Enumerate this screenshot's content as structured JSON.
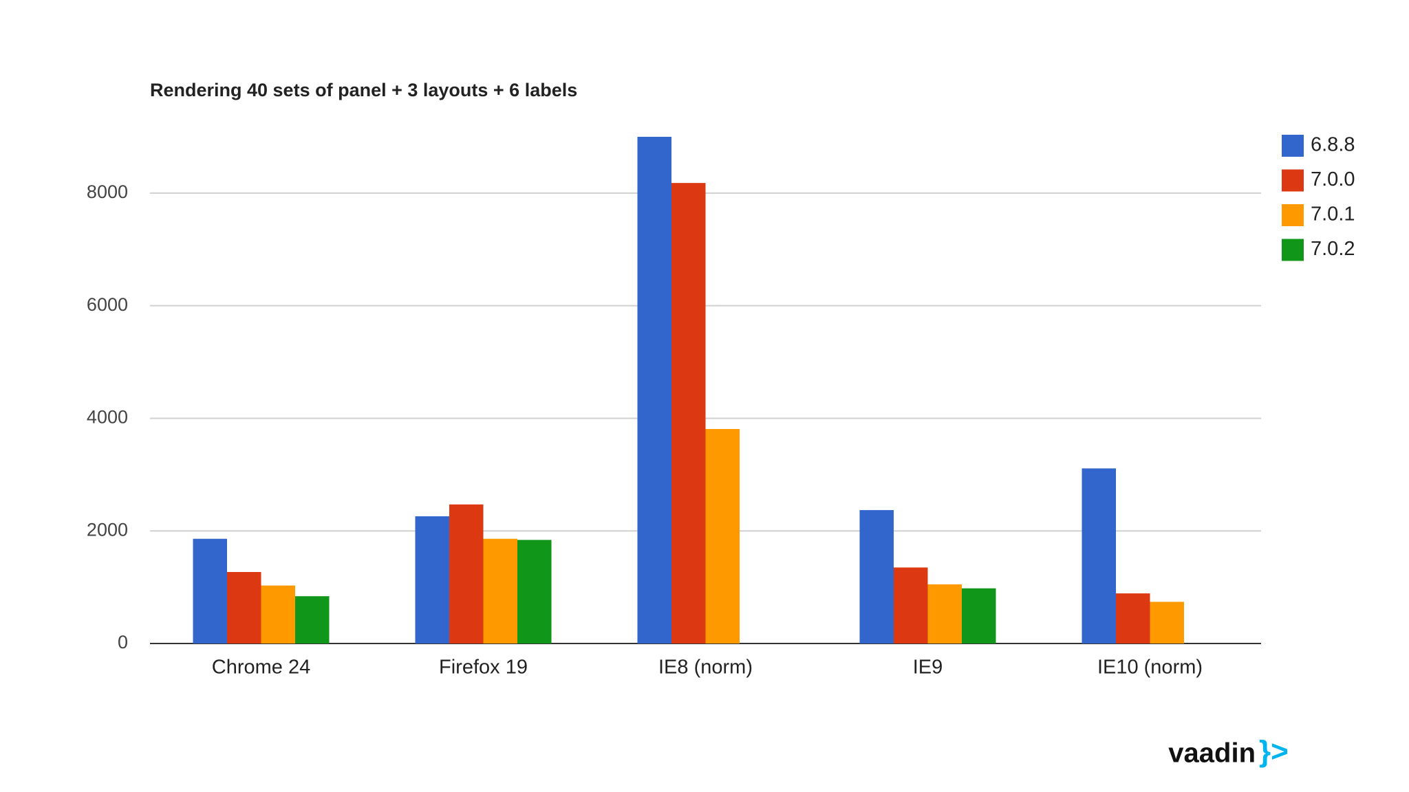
{
  "chart_data": {
    "type": "bar",
    "title": "Rendering 40 sets of panel + 3 layouts + 6 labels",
    "categories": [
      "Chrome 24",
      "Firefox 19",
      "IE8 (norm)",
      "IE9",
      "IE10 (norm)"
    ],
    "series": [
      {
        "name": "6.8.8",
        "color": "#3366cc",
        "values": [
          1860,
          2260,
          9000,
          2370,
          3110
        ]
      },
      {
        "name": "7.0.0",
        "color": "#dc3912",
        "values": [
          1270,
          2470,
          8180,
          1350,
          890
        ]
      },
      {
        "name": "7.0.1",
        "color": "#ff9900",
        "values": [
          1030,
          1860,
          3810,
          1050,
          740
        ]
      },
      {
        "name": "7.0.2",
        "color": "#109618",
        "values": [
          840,
          1840,
          null,
          980,
          null
        ]
      }
    ],
    "ylim": [
      0,
      9000
    ],
    "yticks": [
      0,
      2000,
      4000,
      6000,
      8000
    ],
    "grid": true,
    "legend": "right"
  },
  "logo": {
    "text": "vaadin",
    "mark": "}>"
  }
}
